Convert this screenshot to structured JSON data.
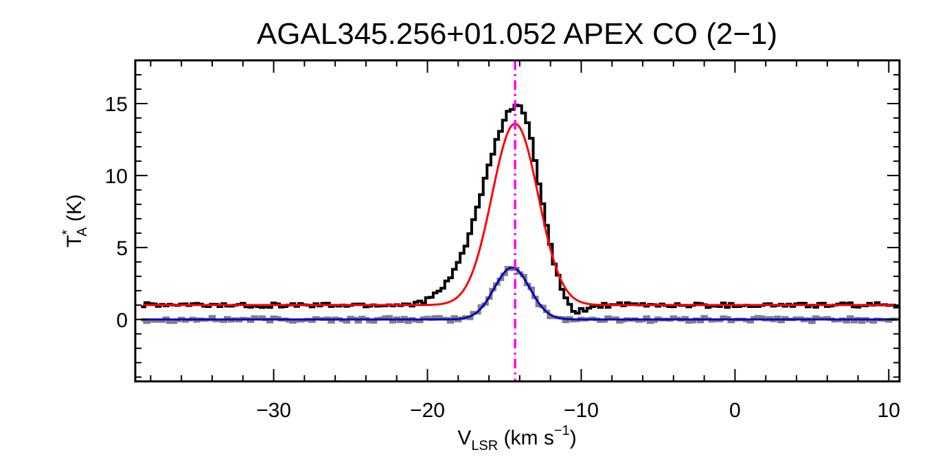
{
  "chart_data": {
    "type": "line",
    "title": "AGAL345.256+01.052  APEX CO (2−1)",
    "xlabel": {
      "main": "V",
      "sub": "LSR",
      "rest": " (km s",
      "sup": "−1",
      "end": ")"
    },
    "ylabel": {
      "main": "T",
      "sup": "*",
      "sub": "A",
      "rest": " (K)"
    },
    "xlim": [
      -39,
      10.7
    ],
    "ylim": [
      -4.3,
      18
    ],
    "x_ticks": [
      {
        "value": -30,
        "label": "−30"
      },
      {
        "value": -20,
        "label": "−20"
      },
      {
        "value": -10,
        "label": "−10"
      },
      {
        "value": 0,
        "label": "0"
      },
      {
        "value": 10,
        "label": "10"
      }
    ],
    "y_ticks": [
      {
        "value": 0,
        "label": "0"
      },
      {
        "value": 5,
        "label": "5"
      },
      {
        "value": 10,
        "label": "10"
      },
      {
        "value": 15,
        "label": "15"
      }
    ],
    "vline": {
      "x": -14.3,
      "color": "#ff00ff",
      "style": "dash-dot"
    },
    "series": [
      {
        "kind": "histogram",
        "color": "#808080",
        "offset": 0,
        "model": {
          "amplitude": 3.6,
          "center": -14.5,
          "sigma": 1.15
        },
        "noise": 0.2,
        "x": [
          -38.5,
          10.5
        ]
      },
      {
        "kind": "histogram",
        "color": "#000000",
        "offset": 1.0,
        "model": {
          "amplitude": 13.9,
          "center": -14.1,
          "sigma": 1.3,
          "skew_left": 1.7,
          "skew_right": 1.05,
          "dip_center": -10.6,
          "dip_depth": 0.8,
          "dip_sigma": 0.7
        },
        "noise": 0.17,
        "x": [
          -38.5,
          10.5
        ]
      },
      {
        "kind": "fit",
        "color": "#ff0000",
        "offset": 1.0,
        "model": {
          "amplitude": 12.6,
          "center": -14.3,
          "sigma": 1.5
        },
        "x": [
          -38.5,
          10.5
        ]
      },
      {
        "kind": "fit",
        "color": "#0000cc",
        "offset": 0,
        "model": {
          "amplitude": 3.6,
          "center": -14.5,
          "sigma": 1.15
        },
        "x": [
          -38.5,
          10.5
        ]
      }
    ]
  }
}
